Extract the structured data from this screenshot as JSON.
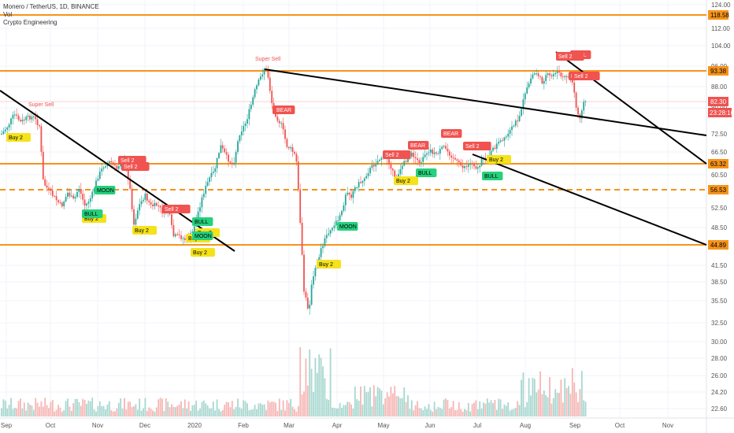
{
  "header": {
    "symbol_line": "Monero / TetherUS, 1D, BINANCE",
    "vol_label": "Vol",
    "indicator_label": "Crypto Engineering"
  },
  "chart_data": {
    "type": "candlestick",
    "y_ticks": [
      "124.00",
      "112.00",
      "104.00",
      "96.00",
      "88.00",
      "80.00",
      "72.50",
      "66.50",
      "60.50",
      "52.50",
      "48.50",
      "41.50",
      "38.50",
      "35.50",
      "32.50",
      "30.00",
      "28.00",
      "26.00",
      "24.20",
      "22.60"
    ],
    "x_ticks": [
      "Sep",
      "Oct",
      "Nov",
      "Dec",
      "2020",
      "Feb",
      "Mar",
      "Apr",
      "May",
      "Jun",
      "Jul",
      "Aug",
      "Sep",
      "Oct",
      "Nov"
    ],
    "price_levels": [
      {
        "label": "118.58",
        "style": "solid"
      },
      {
        "label": "93.38",
        "style": "solid"
      },
      {
        "label": "63.32",
        "style": "solid"
      },
      {
        "label": "56.53",
        "style": "dashed"
      },
      {
        "label": "44.89",
        "style": "solid"
      }
    ],
    "last_price": "82.30",
    "countdown": "23:28:16",
    "annotations": [
      {
        "text": "Super Sell",
        "kind": "text-red"
      },
      {
        "text": "Super Sell",
        "kind": "text-red"
      },
      {
        "text": "Buy 2",
        "kind": "buy"
      },
      {
        "text": "Buy 2",
        "kind": "buy"
      },
      {
        "text": "Buy 2",
        "kind": "buy"
      },
      {
        "text": "Buy 2",
        "kind": "buy"
      },
      {
        "text": "Buy 2",
        "kind": "buy"
      },
      {
        "text": "Buy 2",
        "kind": "buy"
      },
      {
        "text": "Buy 2",
        "kind": "buy"
      },
      {
        "text": "Buy 2",
        "kind": "buy"
      },
      {
        "text": "Buy 2",
        "kind": "buy"
      },
      {
        "text": "MOON",
        "kind": "green"
      },
      {
        "text": "MOON",
        "kind": "green"
      },
      {
        "text": "MOON",
        "kind": "green"
      },
      {
        "text": "BULL",
        "kind": "green"
      },
      {
        "text": "BULL",
        "kind": "green"
      },
      {
        "text": "BULL",
        "kind": "green"
      },
      {
        "text": "BULL",
        "kind": "green"
      },
      {
        "text": "HELL",
        "kind": "red"
      },
      {
        "text": "HELL",
        "kind": "red"
      },
      {
        "text": "BEAR",
        "kind": "red"
      },
      {
        "text": "BEAR",
        "kind": "red"
      },
      {
        "text": "BEAR",
        "kind": "red"
      },
      {
        "text": "BEAR",
        "kind": "red"
      },
      {
        "text": "Sell 2",
        "kind": "red"
      },
      {
        "text": "Sell 2",
        "kind": "red"
      },
      {
        "text": "Sell 2",
        "kind": "red"
      },
      {
        "text": "Sell 2",
        "kind": "red"
      },
      {
        "text": "Sell 2",
        "kind": "red"
      },
      {
        "text": "Sell 2",
        "kind": "red"
      },
      {
        "text": "Sell 2",
        "kind": "red"
      }
    ],
    "colors": {
      "up": "#26a69a",
      "down": "#ef5350",
      "level": "#f7931a",
      "trend": "#000000",
      "buy": "#f5e21b",
      "green_tag": "#26d07c",
      "red_tag": "#f05350"
    }
  }
}
